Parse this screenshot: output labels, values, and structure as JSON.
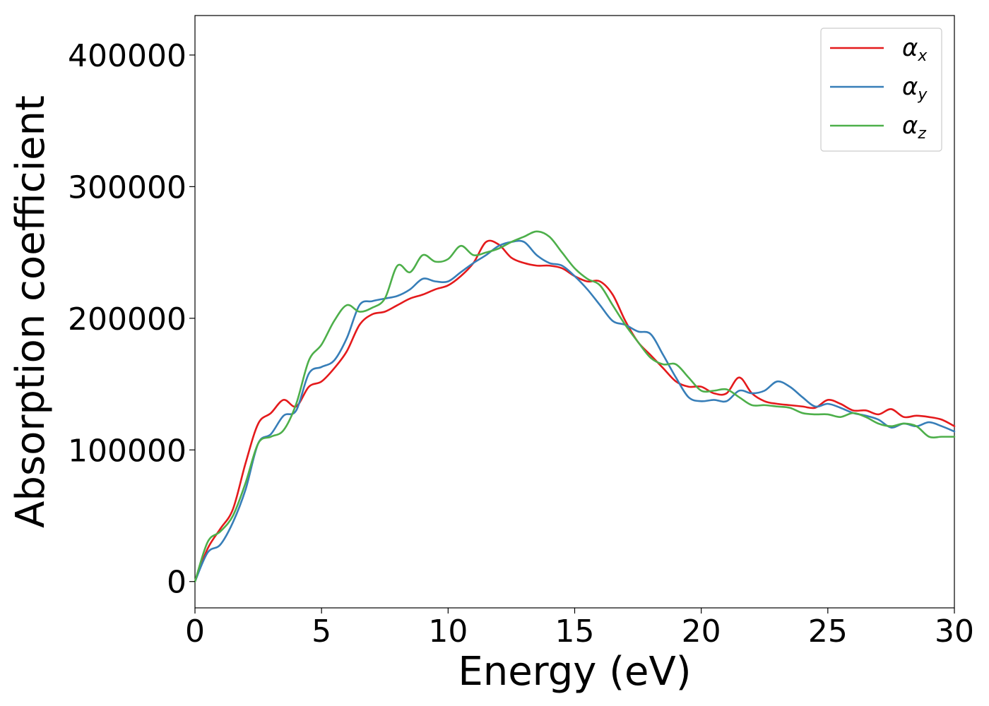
{
  "chart_data": {
    "type": "line",
    "title": "",
    "xlabel": "Energy (eV)",
    "ylabel": "Absorption coefficient",
    "xlim": [
      0,
      30
    ],
    "ylim": [
      -20000,
      430000
    ],
    "xticks": [
      0,
      5,
      10,
      15,
      20,
      25,
      30
    ],
    "yticks": [
      0,
      100000,
      200000,
      300000,
      400000
    ],
    "xtick_labels": [
      "0",
      "5",
      "10",
      "15",
      "20",
      "25",
      "30"
    ],
    "ytick_labels": [
      "0",
      "100000",
      "200000",
      "300000",
      "400000"
    ],
    "grid": false,
    "legend_position": "top-right",
    "series": [
      {
        "name": "α",
        "subscript": "x",
        "color": "#e41a1c",
        "x": [
          0,
          0.5,
          1,
          1.5,
          2,
          2.5,
          3,
          3.5,
          4,
          4.5,
          5,
          5.5,
          6,
          6.5,
          7,
          7.5,
          8,
          8.5,
          9,
          9.5,
          10,
          10.5,
          11,
          11.5,
          12,
          12.5,
          13,
          13.5,
          14,
          14.5,
          15,
          15.5,
          16,
          16.5,
          17,
          17.5,
          18,
          18.5,
          19,
          19.5,
          20,
          20.5,
          21,
          21.5,
          22,
          22.5,
          23,
          23.5,
          24,
          24.5,
          25,
          25.5,
          26,
          26.5,
          27,
          27.5,
          28,
          28.5,
          29,
          29.5,
          30
        ],
        "y": [
          0,
          25000,
          40000,
          55000,
          90000,
          120000,
          128000,
          138000,
          133000,
          148000,
          152000,
          162000,
          175000,
          195000,
          203000,
          205000,
          210000,
          215000,
          218000,
          222000,
          225000,
          232000,
          242000,
          258000,
          256000,
          246000,
          242000,
          240000,
          240000,
          238000,
          232000,
          228000,
          228000,
          218000,
          198000,
          182000,
          172000,
          162000,
          152000,
          148000,
          148000,
          143000,
          143000,
          155000,
          143000,
          137000,
          135000,
          134000,
          133000,
          132000,
          138000,
          135000,
          130000,
          130000,
          127000,
          131000,
          125000,
          126000,
          125000,
          123000,
          118000
        ]
      },
      {
        "name": "α",
        "subscript": "y",
        "color": "#377eb8",
        "x": [
          0,
          0.5,
          1,
          1.5,
          2,
          2.5,
          3,
          3.5,
          4,
          4.5,
          5,
          5.5,
          6,
          6.5,
          7,
          7.5,
          8,
          8.5,
          9,
          9.5,
          10,
          10.5,
          11,
          11.5,
          12,
          12.5,
          13,
          13.5,
          14,
          14.5,
          15,
          15.5,
          16,
          16.5,
          17,
          17.5,
          18,
          18.5,
          19,
          19.5,
          20,
          20.5,
          21,
          21.5,
          22,
          22.5,
          23,
          23.5,
          24,
          24.5,
          25,
          25.5,
          26,
          26.5,
          27,
          27.5,
          28,
          28.5,
          29,
          29.5,
          30
        ],
        "y": [
          0,
          22000,
          28000,
          45000,
          70000,
          105000,
          112000,
          126000,
          130000,
          158000,
          163000,
          168000,
          185000,
          210000,
          213000,
          215000,
          217000,
          222000,
          230000,
          228000,
          228000,
          235000,
          242000,
          248000,
          255000,
          258000,
          258000,
          248000,
          242000,
          240000,
          232000,
          222000,
          210000,
          198000,
          195000,
          190000,
          188000,
          172000,
          155000,
          140000,
          137000,
          138000,
          137000,
          145000,
          143000,
          145000,
          152000,
          148000,
          140000,
          133000,
          135000,
          132000,
          128000,
          126000,
          123000,
          117000,
          120000,
          118000,
          121000,
          118000,
          114000
        ]
      },
      {
        "name": "α",
        "subscript": "z",
        "color": "#4daf4a",
        "x": [
          0,
          0.5,
          1,
          1.5,
          2,
          2.5,
          3,
          3.5,
          4,
          4.5,
          5,
          5.5,
          6,
          6.5,
          7,
          7.5,
          8,
          8.5,
          9,
          9.5,
          10,
          10.5,
          11,
          11.5,
          12,
          12.5,
          13,
          13.5,
          14,
          14.5,
          15,
          15.5,
          16,
          16.5,
          17,
          17.5,
          18,
          18.5,
          19,
          19.5,
          20,
          20.5,
          21,
          21.5,
          22,
          22.5,
          23,
          23.5,
          24,
          24.5,
          25,
          25.5,
          26,
          26.5,
          27,
          27.5,
          28,
          28.5,
          29,
          29.5,
          30
        ],
        "y": [
          0,
          30000,
          38000,
          50000,
          75000,
          105000,
          110000,
          115000,
          135000,
          168000,
          180000,
          198000,
          210000,
          205000,
          208000,
          215000,
          240000,
          235000,
          248000,
          243000,
          245000,
          255000,
          248000,
          250000,
          253000,
          258000,
          262000,
          266000,
          262000,
          250000,
          238000,
          230000,
          225000,
          210000,
          195000,
          182000,
          170000,
          165000,
          165000,
          155000,
          145000,
          145000,
          146000,
          140000,
          134000,
          134000,
          133000,
          132000,
          128000,
          127000,
          127000,
          125000,
          128000,
          125000,
          120000,
          118000,
          120000,
          118000,
          110000,
          110000,
          110000
        ]
      }
    ]
  }
}
